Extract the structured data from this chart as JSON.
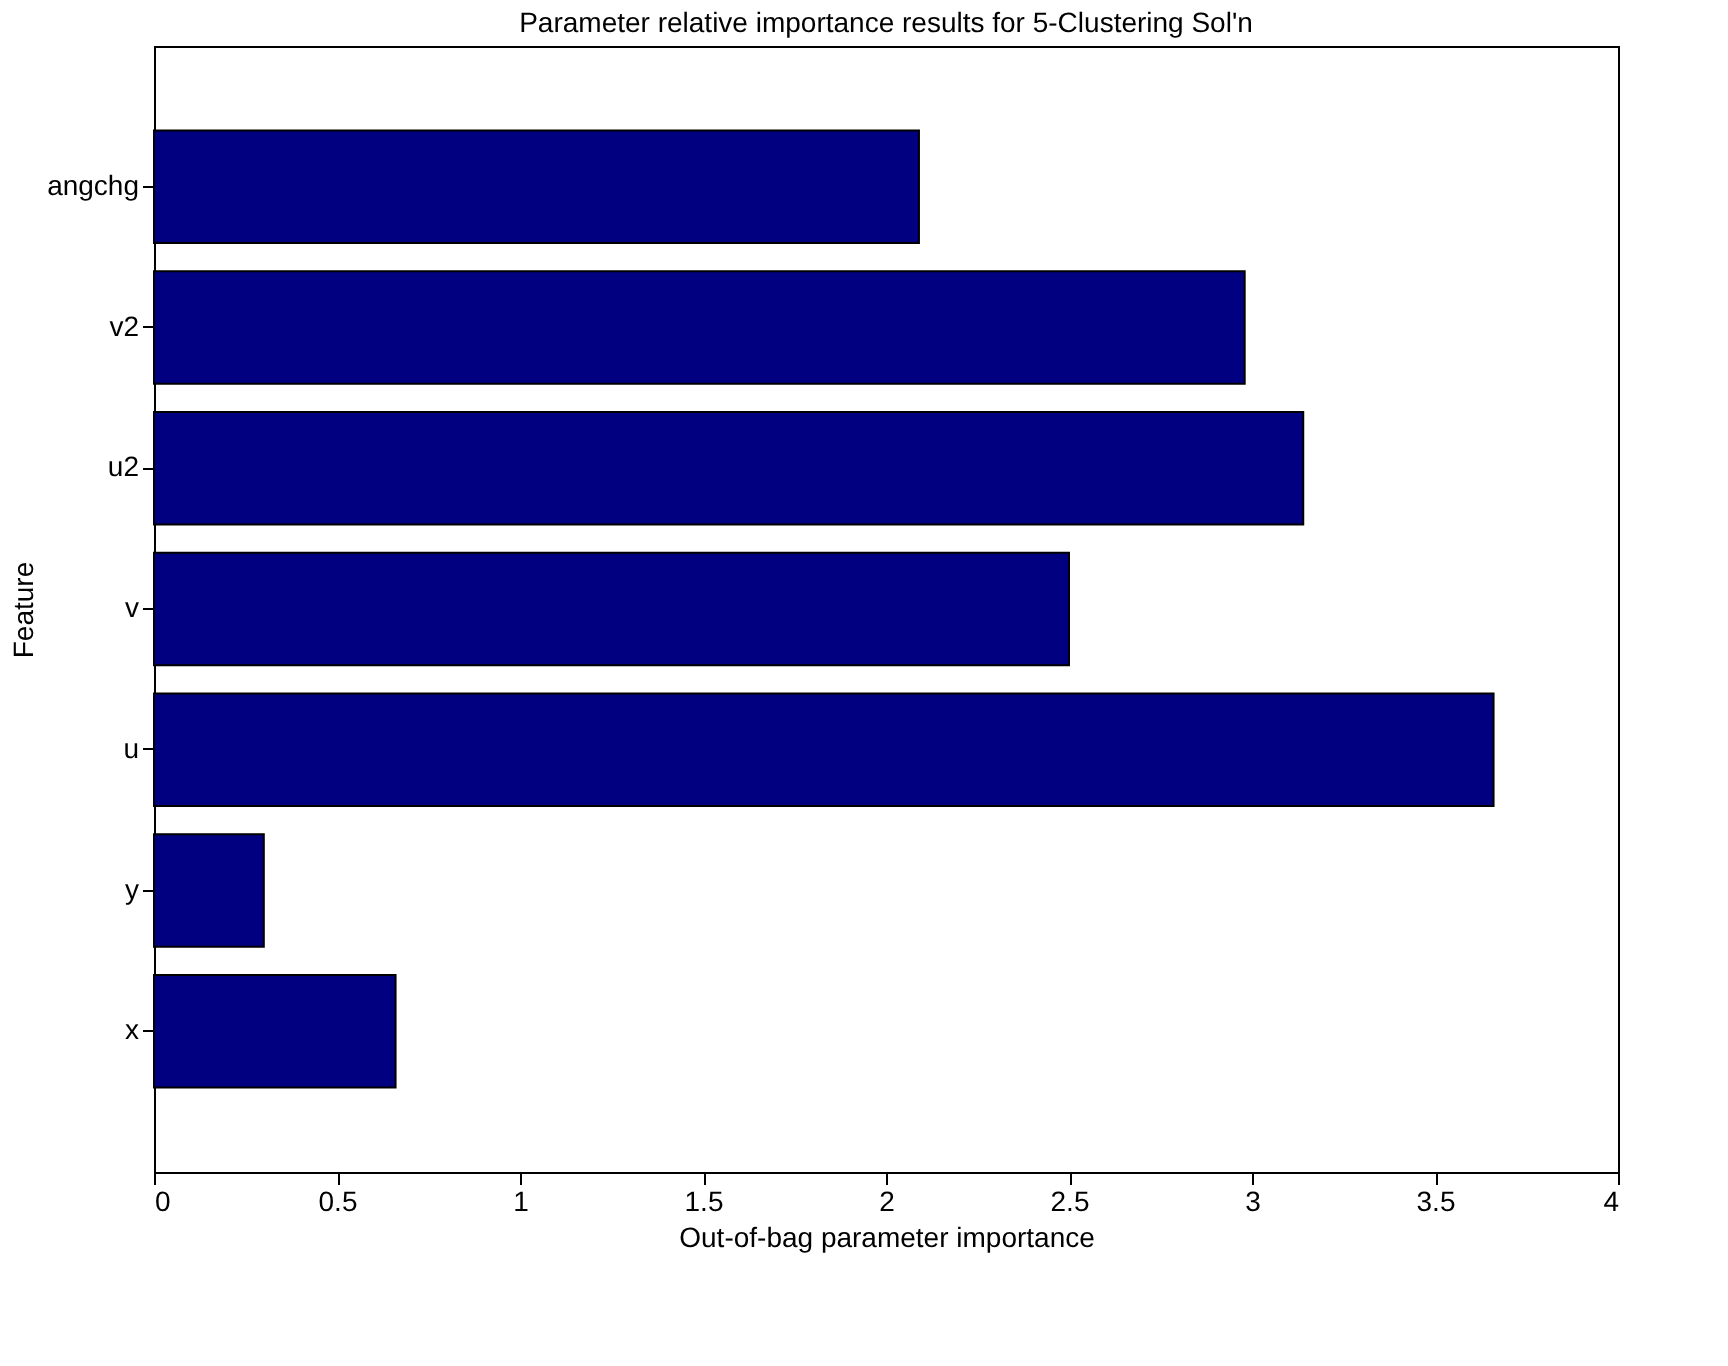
{
  "chart_data": {
    "type": "bar",
    "orientation": "horizontal",
    "title": "Parameter relative importance results for 5-Clustering Sol'n",
    "xlabel": "Out-of-bag parameter importance",
    "ylabel": "Feature",
    "categories": [
      "angchg",
      "v2",
      "u2",
      "v",
      "u",
      "y",
      "x"
    ],
    "values": [
      2.09,
      2.98,
      3.14,
      2.5,
      3.66,
      0.3,
      0.66
    ],
    "color": "#000080",
    "xlim": [
      0,
      4
    ],
    "xticks": [
      0,
      0.5,
      1,
      1.5,
      2,
      2.5,
      3,
      3.5,
      4
    ],
    "grid": false
  }
}
